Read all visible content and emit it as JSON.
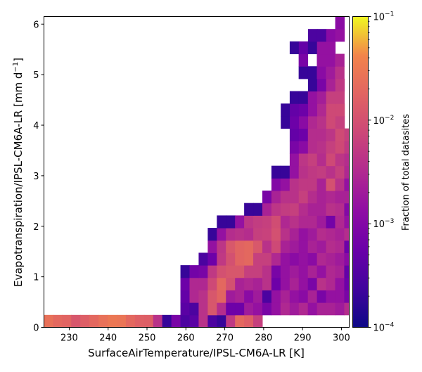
{
  "chart_data": {
    "type": "heatmap",
    "title": "",
    "xlabel": "SurfaceAirTemperature/IPSL-CM6A-LR [K]",
    "ylabel_main": "Evapotranspiration/IPSL-CM6A-LR [mm d",
    "ylabel_sup": "−1",
    "ylabel_close": "]",
    "xlim": [
      223.5,
      302.0
    ],
    "ylim": [
      0,
      6.15
    ],
    "x_bin_width": 2.34,
    "y_bin_width": 0.246,
    "xticks": [
      230,
      240,
      250,
      260,
      270,
      280,
      290,
      300
    ],
    "yticks": [
      0,
      1,
      2,
      3,
      4,
      5,
      6
    ],
    "colorbar": {
      "label": "Fraction of total datasites",
      "scale": "log",
      "range": [
        0.0001,
        0.1
      ],
      "colormap": "plasma",
      "ticks": [
        {
          "value": 0.1,
          "base": "10",
          "exp": "−1"
        },
        {
          "value": 0.01,
          "base": "10",
          "exp": "−2"
        },
        {
          "value": 0.001,
          "base": "10",
          "exp": "−3"
        },
        {
          "value": 0.0001,
          "base": "10",
          "exp": "−4"
        }
      ]
    },
    "rows": [
      {
        "y_bin": 0,
        "x_start": 223.5,
        "values": [
          0.025,
          0.02,
          0.018,
          0.012,
          0.015,
          0.02,
          0.025,
          0.03,
          0.028,
          0.02,
          0.016,
          0.015,
          0.004,
          0.0002,
          0.0008,
          0.0003,
          0.0004,
          0.004,
          0.0003,
          0.0002,
          0.005,
          0.02,
          0.015,
          0.006
        ]
      },
      {
        "y_bin": 1,
        "x_start": 258.6,
        "values": [
          0.0004,
          0.0003,
          0.004,
          0.012,
          0.0035,
          0.0006,
          0.0006,
          0.002,
          0.0015,
          0.0008,
          0.0015,
          0.003,
          0.002,
          0.003,
          0.0015,
          0.0025,
          0.0025,
          0.002,
          0.0035
        ]
      },
      {
        "y_bin": 2,
        "x_start": 258.6,
        "values": [
          0.0005,
          0.003,
          0.004,
          0.012,
          0.018,
          0.002,
          0.0025,
          0.0012,
          0.002,
          0.0003,
          0.0015,
          0.0025,
          0.0015,
          0.0012,
          0.0025,
          0.0008,
          0.0015,
          0.0015,
          0.0008
        ]
      },
      {
        "y_bin": 3,
        "x_start": 258.6,
        "values": [
          0.0006,
          0.003,
          0.003,
          0.008,
          0.02,
          0.01,
          0.0025,
          0.003,
          0.0025,
          0.004,
          0.0006,
          0.0015,
          0.0025,
          0.0015,
          0.0008,
          0.004,
          0.003,
          0.0015,
          0.0006
        ]
      },
      {
        "y_bin": 4,
        "x_start": 258.6,
        "values": [
          0.0002,
          0.0007,
          0.0008,
          0.005,
          0.01,
          0.012,
          0.012,
          0.006,
          0.006,
          0.004,
          0.0008,
          0.0015,
          0.002,
          0.0015,
          0.0025,
          0.0015,
          0.003,
          0.0025,
          0.0005
        ]
      },
      {
        "y_bin": 5,
        "x_start": 258.6,
        "values": [
          null,
          null,
          0.0003,
          0.0006,
          0.005,
          0.01,
          0.018,
          0.02,
          0.006,
          0.006,
          0.003,
          0.0015,
          0.0012,
          0.0015,
          0.0012,
          0.003,
          0.0025,
          0.002,
          0.0012
        ]
      },
      {
        "y_bin": 6,
        "x_start": 258.6,
        "values": [
          null,
          null,
          null,
          0.0015,
          0.0045,
          0.0125,
          0.018,
          0.02,
          0.0125,
          0.004,
          0.008,
          0.0025,
          0.002,
          0.0015,
          0.0025,
          0.002,
          0.0035,
          0.003,
          0.0006
        ]
      },
      {
        "y_bin": 7,
        "x_start": 258.6,
        "values": [
          null,
          null,
          null,
          0.0002,
          0.0015,
          0.0035,
          0.004,
          0.0035,
          0.006,
          0.0065,
          0.01,
          0.004,
          0.0025,
          0.0015,
          0.002,
          0.0035,
          0.003,
          0.0025,
          0.0035
        ]
      },
      {
        "y_bin": 8,
        "x_start": 258.6,
        "values": [
          null,
          null,
          null,
          null,
          0.0002,
          0.0002,
          0.0015,
          0.0045,
          0.0055,
          0.006,
          0.009,
          0.003,
          0.004,
          0.003,
          0.003,
          0.002,
          0.0007,
          0.003,
          0.0015
        ]
      },
      {
        "y_bin": 9,
        "x_start": 258.6,
        "values": [
          null,
          null,
          null,
          null,
          null,
          null,
          null,
          0.0002,
          0.0002,
          0.0025,
          0.0045,
          0.0055,
          0.006,
          0.0035,
          0.0025,
          0.0025,
          0.004,
          0.0035,
          0.001
        ]
      },
      {
        "y_bin": 10,
        "x_start": 258.6,
        "values": [
          null,
          null,
          null,
          null,
          null,
          null,
          null,
          null,
          null,
          0.0008,
          0.0025,
          0.004,
          0.004,
          0.006,
          0.0035,
          0.0025,
          0.003,
          0.0025,
          0.0025
        ]
      },
      {
        "y_bin": 11,
        "x_start": 258.6,
        "values": [
          null,
          null,
          null,
          null,
          null,
          null,
          null,
          null,
          null,
          null,
          0.001,
          0.0015,
          0.004,
          0.005,
          0.005,
          0.0025,
          0.01,
          0.004,
          0.0015
        ]
      },
      {
        "y_bin": 12,
        "x_start": 258.6,
        "values": [
          null,
          null,
          null,
          null,
          null,
          null,
          null,
          null,
          null,
          null,
          0.0002,
          0.0002,
          0.0015,
          0.004,
          0.005,
          0.0055,
          0.004,
          0.006,
          0.003
        ]
      },
      {
        "y_bin": 13,
        "x_start": 286.7,
        "values": [
          0.0015,
          0.0045,
          0.006,
          0.0035,
          0.008,
          0.0045,
          0.0035
        ]
      },
      {
        "y_bin": 14,
        "x_start": 286.7,
        "values": [
          0.0008,
          0.0012,
          0.0035,
          0.004,
          0.006,
          0.008,
          0.005
        ]
      },
      {
        "y_bin": 15,
        "x_start": 286.7,
        "values": [
          0.0005,
          0.0006,
          0.0035,
          0.0035,
          0.0045,
          0.0085,
          0.006
        ]
      },
      {
        "y_bin": 16,
        "x_start": 284.4,
        "values": [
          0.0002,
          0.0006,
          0.0012,
          0.003,
          0.004,
          0.008,
          0.006
        ]
      },
      {
        "y_bin": 17,
        "x_start": 284.4,
        "values": [
          0.0002,
          0.0005,
          0.0006,
          0.0015,
          0.003,
          0.008,
          0.008
        ]
      },
      {
        "y_bin": 18,
        "x_start": 286.7,
        "values": [
          0.0002,
          0.0002,
          0.0015,
          0.0022,
          0.006,
          0.006
        ]
      },
      {
        "y_bin": 19,
        "x_start": 291.4,
        "values": [
          0.0002,
          0.0008,
          0.0025,
          0.005
        ]
      },
      {
        "y_bin": 20,
        "x_start": 289.0,
        "values": [
          0.0002,
          0.0002,
          0.0012,
          0.002,
          0.004
        ]
      },
      {
        "y_bin": 21,
        "x_start": 289.0,
        "values": [
          0.0008,
          null,
          0.0015,
          0.0015,
          0.0025
        ]
      },
      {
        "y_bin": 22,
        "x_start": 286.7,
        "values": [
          0.0002,
          0.0005,
          0.0002,
          0.0015,
          0.0015
        ]
      },
      {
        "y_bin": 23,
        "x_start": 291.4,
        "values": [
          0.0003,
          0.0003,
          0.0012,
          0.0015
        ]
      },
      {
        "y_bin": 24,
        "x_start": 298.4,
        "values": [
          0.0012
        ]
      },
      {
        "y_bin": 25,
        "x_start": 293.7,
        "values": [
          0.0002,
          0.0002,
          0.0002,
          0.0008
        ]
      },
      {
        "y_bin": 26,
        "x_start": 286.7,
        "values": [
          0.0002
        ]
      }
    ]
  }
}
